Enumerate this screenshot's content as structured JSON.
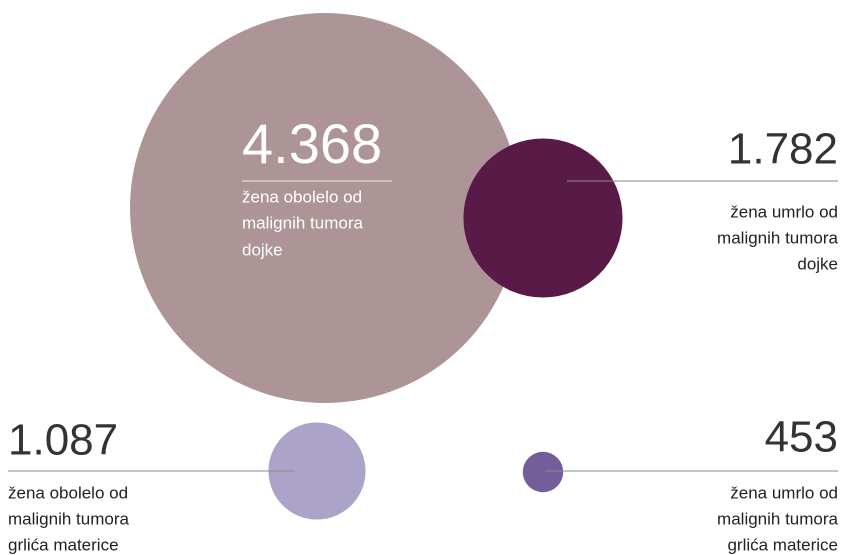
{
  "chart_data": {
    "type": "bubble",
    "values": [
      4368,
      1782,
      1087,
      453
    ],
    "value_labels": [
      "4.368",
      "1.782",
      "1.087",
      "453"
    ],
    "labels": [
      [
        "žena obolelo od",
        "malignih tumora",
        "dojke"
      ],
      [
        "žena umrlo od",
        "malignih tumora",
        "dojke"
      ],
      [
        "žena obolelo od",
        "malignih tumora",
        "grlića materice"
      ],
      [
        "žena umrlo od",
        "malignih tumora",
        "grlića materice"
      ]
    ],
    "colors": [
      "#ad9496",
      "#5a1a48",
      "#aca3c8",
      "#735d9b"
    ]
  }
}
